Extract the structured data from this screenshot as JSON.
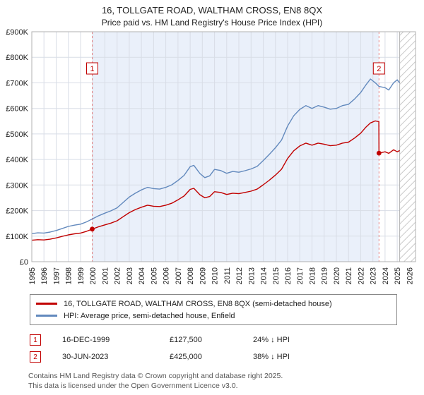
{
  "title": "16, TOLLGATE ROAD, WALTHAM CROSS, EN8 8QX",
  "subtitle": "Price paid vs. HM Land Registry's House Price Index (HPI)",
  "chart_data": {
    "type": "line",
    "x_range": [
      1995,
      2026.5
    ],
    "ylim": [
      0,
      900000
    ],
    "x_ticks": [
      1995,
      1996,
      1997,
      1998,
      1999,
      2000,
      2001,
      2002,
      2003,
      2004,
      2005,
      2006,
      2007,
      2008,
      2009,
      2010,
      2011,
      2012,
      2013,
      2014,
      2015,
      2016,
      2017,
      2018,
      2019,
      2020,
      2021,
      2022,
      2023,
      2024,
      2025,
      2026
    ],
    "y_ticks": [
      {
        "value": 0,
        "label": "£0"
      },
      {
        "value": 100000,
        "label": "£100K"
      },
      {
        "value": 200000,
        "label": "£200K"
      },
      {
        "value": 300000,
        "label": "£300K"
      },
      {
        "value": 400000,
        "label": "£400K"
      },
      {
        "value": 500000,
        "label": "£500K"
      },
      {
        "value": 600000,
        "label": "£600K"
      },
      {
        "value": 700000,
        "label": "£700K"
      },
      {
        "value": 800000,
        "label": "£800K"
      },
      {
        "value": 900000,
        "label": "£900K"
      }
    ],
    "shaded_span": [
      1999.96,
      2023.5
    ],
    "hatched_span": [
      2025.2,
      2026.5
    ],
    "colors": {
      "shade": "#eaf0fa",
      "grid": "#d8dde6",
      "plot_border": "#b0b0b0",
      "marker_dash": "#e98989",
      "dot": "#c10000",
      "hatch": "#c9c9c9"
    },
    "series": [
      {
        "key": "property-price",
        "name": "16, TOLLGATE ROAD, WALTHAM CROSS, EN8 8QX (semi-detached house)",
        "color": "#c10000",
        "x": [
          1995,
          1995.5,
          1996,
          1996.5,
          1997,
          1997.5,
          1998,
          1998.5,
          1999,
          1999.5,
          1999.96,
          2000.5,
          2001,
          2001.5,
          2002,
          2002.5,
          2003,
          2003.5,
          2004,
          2004.5,
          2005,
          2005.5,
          2006,
          2006.5,
          2007,
          2007.5,
          2008,
          2008.3,
          2008.8,
          2009.2,
          2009.6,
          2010,
          2010.5,
          2011,
          2011.5,
          2012,
          2012.5,
          2013,
          2013.5,
          2014,
          2014.5,
          2015,
          2015.5,
          2016,
          2016.5,
          2017,
          2017.5,
          2018,
          2018.5,
          2019,
          2019.5,
          2020,
          2020.5,
          2021,
          2021.5,
          2022,
          2022.4,
          2022.8,
          2023.2,
          2023.49,
          2023.5,
          2024,
          2024.3,
          2024.7,
          2025,
          2025.2
        ],
        "values": [
          84000,
          86000,
          85000,
          88000,
          93000,
          99000,
          105000,
          109000,
          112000,
          119000,
          127500,
          137000,
          144000,
          151000,
          160000,
          176000,
          192000,
          204000,
          213000,
          221000,
          217000,
          216000,
          221000,
          229000,
          242000,
          257000,
          283000,
          287000,
          262000,
          250000,
          255000,
          274000,
          271000,
          263000,
          268000,
          266000,
          271000,
          276000,
          284000,
          301000,
          319000,
          339000,
          362000,
          404000,
          434000,
          453000,
          464000,
          456000,
          464000,
          460000,
          454000,
          456000,
          464000,
          468000,
          484000,
          503000,
          525000,
          543000,
          551000,
          548000,
          425000,
          430000,
          424000,
          438000,
          430000,
          435000
        ]
      },
      {
        "key": "hpi",
        "name": "HPI: Average price, semi-detached house, Enfield",
        "color": "#6289bd",
        "x": [
          1995,
          1995.5,
          1996,
          1996.5,
          1997,
          1997.5,
          1998,
          1998.5,
          1999,
          1999.5,
          2000,
          2000.5,
          2001,
          2001.5,
          2002,
          2002.5,
          2003,
          2003.5,
          2004,
          2004.5,
          2005,
          2005.5,
          2006,
          2006.5,
          2007,
          2007.5,
          2008,
          2008.3,
          2008.8,
          2009.2,
          2009.6,
          2010,
          2010.5,
          2011,
          2011.5,
          2012,
          2012.5,
          2013,
          2013.5,
          2014,
          2014.5,
          2015,
          2015.5,
          2016,
          2016.5,
          2017,
          2017.5,
          2018,
          2018.5,
          2019,
          2019.5,
          2020,
          2020.5,
          2021,
          2021.5,
          2022,
          2022.4,
          2022.8,
          2023.2,
          2023.5,
          2024,
          2024.3,
          2024.7,
          2025,
          2025.2
        ],
        "values": [
          110000,
          113000,
          112000,
          116000,
          122000,
          130000,
          138000,
          143000,
          147000,
          156000,
          168000,
          180000,
          190000,
          199000,
          211000,
          232000,
          253000,
          268000,
          281000,
          291000,
          286000,
          284000,
          291000,
          301000,
          318000,
          338000,
          372000,
          377000,
          345000,
          329000,
          336000,
          361000,
          357000,
          346000,
          353000,
          350000,
          356000,
          363000,
          373000,
          396000,
          420000,
          446000,
          476000,
          531000,
          571000,
          596000,
          611000,
          600000,
          611000,
          605000,
          597000,
          600000,
          611000,
          616000,
          637000,
          662000,
          690000,
          715000,
          700000,
          686000,
          681000,
          672000,
          700000,
          712000,
          700000
        ]
      }
    ],
    "markers": [
      {
        "label": "1",
        "x": 1999.96,
        "value": 127500
      },
      {
        "label": "2",
        "x": 2023.5,
        "value": 425000
      }
    ]
  },
  "annotations": [
    {
      "num": "1",
      "date": "16-DEC-1999",
      "price": "£127,500",
      "hpi": "24% ↓ HPI"
    },
    {
      "num": "2",
      "date": "30-JUN-2023",
      "price": "£425,000",
      "hpi": "38% ↓ HPI"
    }
  ],
  "footer": {
    "line1": "Contains HM Land Registry data © Crown copyright and database right 2025.",
    "line2": "This data is licensed under the Open Government Licence v3.0."
  }
}
